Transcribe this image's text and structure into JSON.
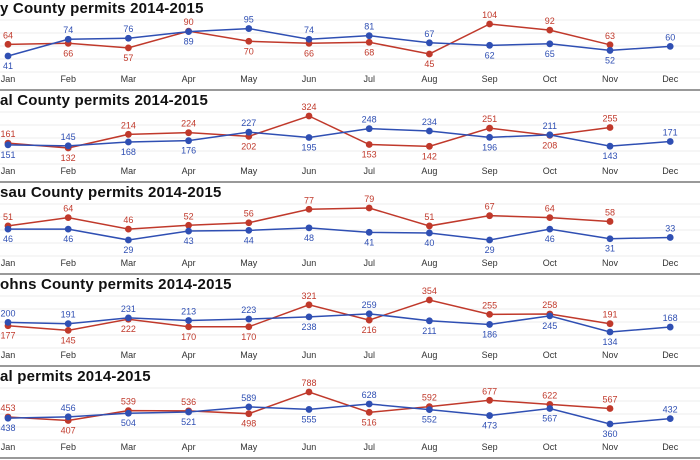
{
  "colors": {
    "series_2014": "#c0392b",
    "series_2015": "#2f4fb3",
    "grid": "#d9d9d9",
    "axis": "#333333"
  },
  "chart_data": [
    {
      "type": "line",
      "title": "y County permits 2014-2015",
      "categories": [
        "Jan",
        "Feb",
        "Mar",
        "Apr",
        "May",
        "Jun",
        "Jul",
        "Aug",
        "Sep",
        "Oct",
        "Nov",
        "Dec"
      ],
      "series": [
        {
          "color": "#c0392b",
          "values": [
            64,
            66,
            57,
            90,
            70,
            66,
            68,
            45,
            104,
            92,
            63,
            null
          ]
        },
        {
          "color": "#2f4fb3",
          "values": [
            41,
            74,
            76,
            89,
            95,
            74,
            81,
            67,
            62,
            65,
            52,
            60
          ]
        }
      ],
      "grid": true
    },
    {
      "type": "line",
      "title": "al County permits 2014-2015",
      "categories": [
        "Jan",
        "Feb",
        "Mar",
        "Apr",
        "May",
        "Jun",
        "Jul",
        "Aug",
        "Sep",
        "Oct",
        "Nov",
        "Dec"
      ],
      "series": [
        {
          "color": "#c0392b",
          "values": [
            161,
            132,
            214,
            224,
            202,
            324,
            153,
            142,
            251,
            208,
            255,
            null
          ]
        },
        {
          "color": "#2f4fb3",
          "values": [
            151,
            145,
            168,
            176,
            227,
            195,
            248,
            234,
            196,
            211,
            143,
            171
          ]
        }
      ],
      "grid": true
    },
    {
      "type": "line",
      "title": "sau County permits 2014-2015",
      "categories": [
        "Jan",
        "Feb",
        "Mar",
        "Apr",
        "May",
        "Jun",
        "Jul",
        "Aug",
        "Sep",
        "Oct",
        "Nov",
        "Dec"
      ],
      "series": [
        {
          "color": "#c0392b",
          "values": [
            51,
            64,
            46,
            52,
            56,
            77,
            79,
            51,
            67,
            64,
            58,
            null
          ]
        },
        {
          "color": "#2f4fb3",
          "values": [
            46,
            46,
            29,
            43,
            44,
            48,
            41,
            40,
            29,
            46,
            31,
            33
          ]
        }
      ],
      "grid": true
    },
    {
      "type": "line",
      "title": "ohns County permits 2014-2015",
      "categories": [
        "Jan",
        "Feb",
        "Mar",
        "Apr",
        "May",
        "Jun",
        "Jul",
        "Aug",
        "Sep",
        "Oct",
        "Nov",
        "Dec"
      ],
      "series": [
        {
          "color": "#c0392b",
          "values": [
            177,
            145,
            222,
            170,
            170,
            321,
            216,
            354,
            255,
            258,
            191,
            null
          ]
        },
        {
          "color": "#2f4fb3",
          "values": [
            200,
            191,
            231,
            213,
            223,
            238,
            259,
            211,
            186,
            245,
            134,
            168
          ]
        }
      ],
      "grid": true
    },
    {
      "type": "line",
      "title": "al permits 2014-2015",
      "categories": [
        "Jan",
        "Feb",
        "Mar",
        "Apr",
        "May",
        "Jun",
        "Jul",
        "Aug",
        "Sep",
        "Oct",
        "Nov",
        "Dec"
      ],
      "series": [
        {
          "color": "#c0392b",
          "values": [
            453,
            407,
            539,
            536,
            498,
            788,
            516,
            592,
            677,
            622,
            567,
            null
          ]
        },
        {
          "color": "#2f4fb3",
          "values": [
            438,
            456,
            504,
            521,
            589,
            555,
            628,
            552,
            473,
            567,
            360,
            432
          ]
        }
      ],
      "grid": true
    }
  ]
}
